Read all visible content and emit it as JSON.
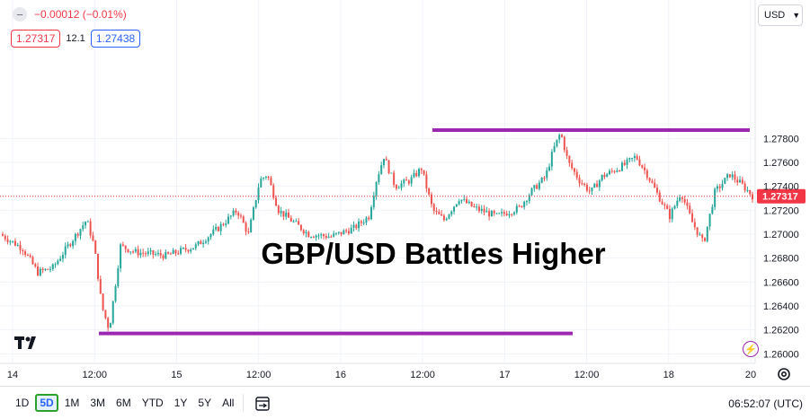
{
  "header": {
    "change_text": "−0.00012 (−0.01%)",
    "bid_price": "1.27317",
    "spread": "12.1",
    "ask_price": "1.27438",
    "currency": "USD"
  },
  "chart_data": {
    "type": "candlestick",
    "title": "GBP/USD Battles Higher",
    "current_price": 1.27317,
    "current_price_label": "1.27317",
    "ylim": [
      1.2592,
      1.2892
    ],
    "y_ticks": [
      "1.27800",
      "1.27600",
      "1.27400",
      "1.27200",
      "1.27000",
      "1.26800",
      "1.26600",
      "1.26400",
      "1.26200",
      "1.26000"
    ],
    "x_ticks": [
      "14",
      "12:00",
      "15",
      "12:00",
      "16",
      "12:00",
      "17",
      "12:00",
      "18",
      "20"
    ],
    "resistance_level": 1.2787,
    "support_level": 1.2617,
    "price_path": [
      [
        0,
        1.27
      ],
      [
        0.03,
        1.2688
      ],
      [
        0.05,
        1.2668
      ],
      [
        0.07,
        1.2672
      ],
      [
        0.09,
        1.269
      ],
      [
        0.115,
        1.2712
      ],
      [
        0.125,
        1.269
      ],
      [
        0.135,
        1.264
      ],
      [
        0.145,
        1.262
      ],
      [
        0.16,
        1.269
      ],
      [
        0.18,
        1.2685
      ],
      [
        0.22,
        1.2682
      ],
      [
        0.26,
        1.269
      ],
      [
        0.29,
        1.2705
      ],
      [
        0.315,
        1.272
      ],
      [
        0.33,
        1.27
      ],
      [
        0.345,
        1.2745
      ],
      [
        0.355,
        1.275
      ],
      [
        0.37,
        1.272
      ],
      [
        0.39,
        1.271
      ],
      [
        0.41,
        1.27
      ],
      [
        0.44,
        1.2698
      ],
      [
        0.47,
        1.2705
      ],
      [
        0.49,
        1.2715
      ],
      [
        0.5,
        1.2745
      ],
      [
        0.51,
        1.2765
      ],
      [
        0.525,
        1.274
      ],
      [
        0.545,
        1.2745
      ],
      [
        0.56,
        1.2755
      ],
      [
        0.575,
        1.272
      ],
      [
        0.59,
        1.2712
      ],
      [
        0.61,
        1.273
      ],
      [
        0.63,
        1.2722
      ],
      [
        0.66,
        1.2715
      ],
      [
        0.69,
        1.2722
      ],
      [
        0.705,
        1.2735
      ],
      [
        0.725,
        1.2748
      ],
      [
        0.735,
        1.277
      ],
      [
        0.745,
        1.2785
      ],
      [
        0.755,
        1.276
      ],
      [
        0.77,
        1.2745
      ],
      [
        0.785,
        1.2735
      ],
      [
        0.8,
        1.2748
      ],
      [
        0.83,
        1.2758
      ],
      [
        0.845,
        1.2765
      ],
      [
        0.86,
        1.275
      ],
      [
        0.875,
        1.2732
      ],
      [
        0.89,
        1.2715
      ],
      [
        0.905,
        1.2735
      ],
      [
        0.92,
        1.271
      ],
      [
        0.935,
        1.2692
      ],
      [
        0.95,
        1.2735
      ],
      [
        0.97,
        1.275
      ],
      [
        0.985,
        1.2742
      ],
      [
        1.0,
        1.2732
      ]
    ]
  },
  "bottom_bar": {
    "timeframes": [
      "1D",
      "5D",
      "1M",
      "3M",
      "6M",
      "YTD",
      "1Y",
      "5Y",
      "All"
    ],
    "active_timeframe": "5D",
    "clock": "06:52:07 (UTC)"
  },
  "colors": {
    "up": "#26a69a",
    "down": "#ef5350",
    "level_line": "#9c27b0",
    "price_label_bg": "#f23645",
    "ask_blue": "#2962ff"
  },
  "icons": [
    "minus-circle-icon",
    "chevron-down-icon",
    "tradingview-logo-icon",
    "lightning-icon",
    "settings-icon",
    "compare-icon"
  ]
}
